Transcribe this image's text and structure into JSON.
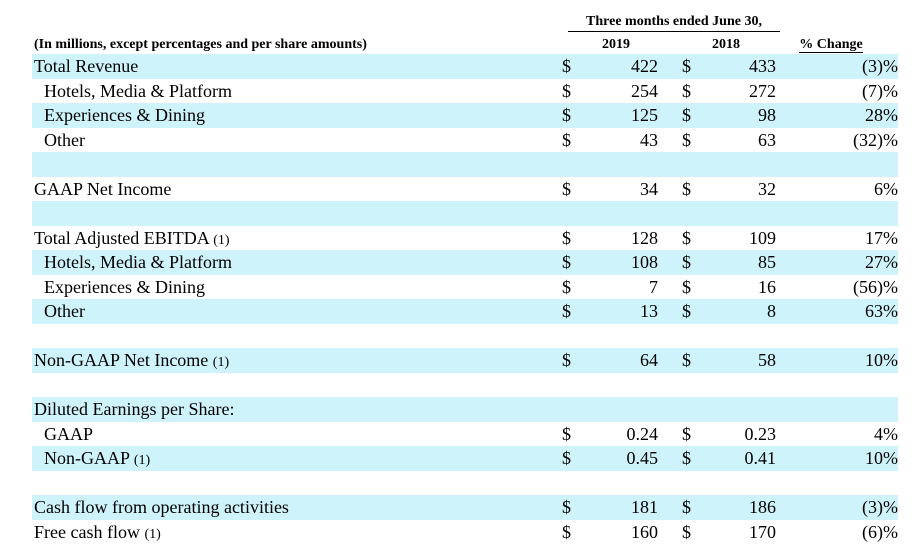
{
  "header": {
    "period_title": "Three months ended June 30,",
    "units_label": "(In millions, except percentages and per share amounts)",
    "col_2019": "2019",
    "col_2018": "2018",
    "col_pct": "% Change"
  },
  "rows": [
    {
      "label": "Total Revenue",
      "note": "",
      "indent": false,
      "cur1": "$",
      "v2019": "422",
      "cur2": "$",
      "v2018": "433",
      "pct": "(3)%",
      "shaded": true
    },
    {
      "label": "Hotels, Media & Platform",
      "note": "",
      "indent": true,
      "cur1": "$",
      "v2019": "254",
      "cur2": "$",
      "v2018": "272",
      "pct": "(7)%",
      "shaded": false
    },
    {
      "label": "Experiences & Dining",
      "note": "",
      "indent": true,
      "cur1": "$",
      "v2019": "125",
      "cur2": "$",
      "v2018": "98",
      "pct": "28%",
      "shaded": true
    },
    {
      "label": "Other",
      "note": "",
      "indent": true,
      "cur1": "$",
      "v2019": "43",
      "cur2": "$",
      "v2018": "63",
      "pct": "(32)%",
      "shaded": false
    },
    {
      "label": "",
      "note": "",
      "indent": false,
      "cur1": "",
      "v2019": "",
      "cur2": "",
      "v2018": "",
      "pct": "",
      "shaded": true
    },
    {
      "label": "GAAP Net Income",
      "note": "",
      "indent": false,
      "cur1": "$",
      "v2019": "34",
      "cur2": "$",
      "v2018": "32",
      "pct": "6%",
      "shaded": false
    },
    {
      "label": "",
      "note": "",
      "indent": false,
      "cur1": "",
      "v2019": "",
      "cur2": "",
      "v2018": "",
      "pct": "",
      "shaded": true
    },
    {
      "label": "Total Adjusted EBITDA",
      "note": "(1)",
      "indent": false,
      "cur1": "$",
      "v2019": "128",
      "cur2": "$",
      "v2018": "109",
      "pct": "17%",
      "shaded": false
    },
    {
      "label": "Hotels, Media & Platform",
      "note": "",
      "indent": true,
      "cur1": "$",
      "v2019": "108",
      "cur2": "$",
      "v2018": "85",
      "pct": "27%",
      "shaded": true
    },
    {
      "label": "Experiences & Dining",
      "note": "",
      "indent": true,
      "cur1": "$",
      "v2019": "7",
      "cur2": "$",
      "v2018": "16",
      "pct": "(56)%",
      "shaded": false
    },
    {
      "label": "Other",
      "note": "",
      "indent": true,
      "cur1": "$",
      "v2019": "13",
      "cur2": "$",
      "v2018": "8",
      "pct": "63%",
      "shaded": true
    },
    {
      "label": "",
      "note": "",
      "indent": false,
      "cur1": "",
      "v2019": "",
      "cur2": "",
      "v2018": "",
      "pct": "",
      "shaded": false
    },
    {
      "label": "Non-GAAP Net Income",
      "note": "(1)",
      "indent": false,
      "cur1": "$",
      "v2019": "64",
      "cur2": "$",
      "v2018": "58",
      "pct": "10%",
      "shaded": true
    },
    {
      "label": "",
      "note": "",
      "indent": false,
      "cur1": "",
      "v2019": "",
      "cur2": "",
      "v2018": "",
      "pct": "",
      "shaded": false
    },
    {
      "label": "Diluted Earnings per Share:",
      "note": "",
      "indent": false,
      "cur1": "",
      "v2019": "",
      "cur2": "",
      "v2018": "",
      "pct": "",
      "shaded": true
    },
    {
      "label": "GAAP",
      "note": "",
      "indent": true,
      "cur1": "$",
      "v2019": "0.24",
      "cur2": "$",
      "v2018": "0.23",
      "pct": "4%",
      "shaded": false
    },
    {
      "label": "Non-GAAP",
      "note": "(1)",
      "indent": true,
      "cur1": "$",
      "v2019": "0.45",
      "cur2": "$",
      "v2018": "0.41",
      "pct": "10%",
      "shaded": true
    },
    {
      "label": "",
      "note": "",
      "indent": false,
      "cur1": "",
      "v2019": "",
      "cur2": "",
      "v2018": "",
      "pct": "",
      "shaded": false
    },
    {
      "label": "Cash flow from operating activities",
      "note": "",
      "indent": false,
      "cur1": "$",
      "v2019": "181",
      "cur2": "$",
      "v2018": "186",
      "pct": "(3)%",
      "shaded": true
    },
    {
      "label": "Free cash flow",
      "note": "(1)",
      "indent": false,
      "cur1": "$",
      "v2019": "160",
      "cur2": "$",
      "v2018": "170",
      "pct": "(6)%",
      "shaded": false
    }
  ]
}
